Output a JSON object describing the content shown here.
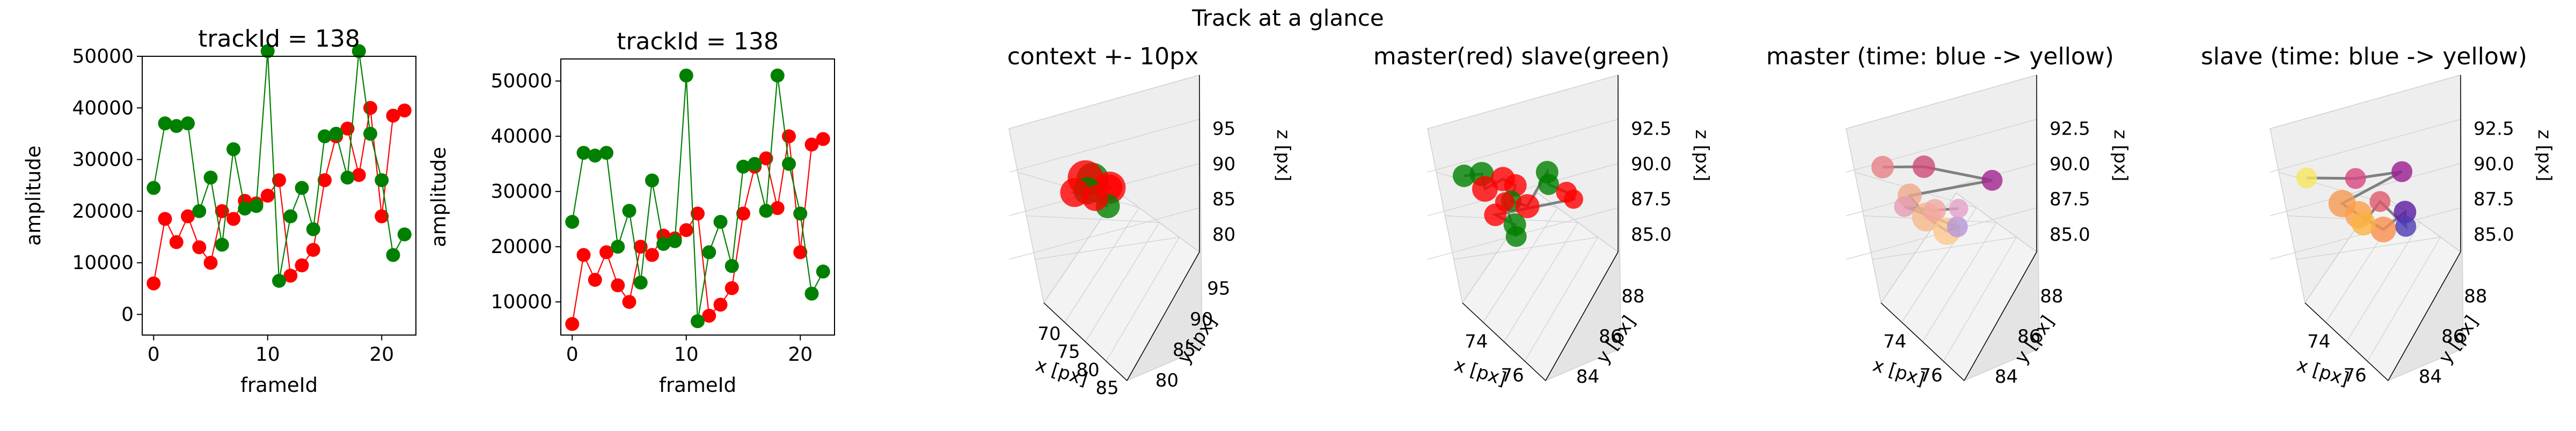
{
  "figure": {
    "suptitle": "Track at a glance"
  },
  "colors": {
    "master": "#ff0000",
    "slave": "#008000",
    "track_line": "#808080",
    "pane_face": "#eeeeee",
    "grid": "#d0d0d0"
  },
  "chart_data": [
    {
      "type": "line",
      "title": "trackId = 138",
      "xlabel": "frameId",
      "ylabel": "amplitude",
      "xlim": [
        -1,
        23
      ],
      "ylim": [
        -4000,
        50000
      ],
      "xticks": [
        "0",
        "10",
        "20"
      ],
      "yticks": [
        "0",
        "10000",
        "20000",
        "30000",
        "40000",
        "50000"
      ],
      "grid": false,
      "series": [
        {
          "color": "#ff0000",
          "x": [
            0,
            1,
            2,
            3,
            4,
            5,
            6,
            7,
            8,
            9,
            10,
            11,
            12,
            13,
            14,
            15,
            16,
            17,
            18,
            19,
            20,
            21,
            22
          ],
          "values": [
            6000,
            18500,
            14000,
            19000,
            13000,
            10000,
            20000,
            18500,
            22000,
            21500,
            23000,
            26000,
            7500,
            9500,
            12500,
            26000,
            34500,
            36000,
            27000,
            40000,
            19000,
            38500,
            39500
          ]
        },
        {
          "color": "#008000",
          "x": [
            0,
            1,
            2,
            3,
            4,
            5,
            6,
            7,
            8,
            9,
            10,
            11,
            12,
            13,
            14,
            15,
            16,
            17,
            18,
            19,
            20,
            21,
            22
          ],
          "values": [
            24500,
            37000,
            36500,
            37000,
            20000,
            26500,
            13500,
            32000,
            20500,
            21000,
            51000,
            6500,
            19000,
            24500,
            16500,
            34500,
            35000,
            26500,
            51000,
            35000,
            26000,
            11500,
            15500
          ]
        }
      ]
    },
    {
      "type": "line",
      "title": "trackId = 138",
      "xlabel": "frameId",
      "ylabel": "amplitude",
      "xlim": [
        -1,
        23
      ],
      "ylim": [
        4000,
        54000
      ],
      "xticks": [
        "0",
        "10",
        "20"
      ],
      "yticks": [
        "10000",
        "20000",
        "30000",
        "40000",
        "50000"
      ],
      "grid": false,
      "series": [
        {
          "color": "#ff0000",
          "x": [
            0,
            1,
            2,
            3,
            4,
            5,
            6,
            7,
            8,
            9,
            10,
            11,
            12,
            13,
            14,
            15,
            16,
            17,
            18,
            19,
            20,
            21,
            22
          ],
          "values": [
            6000,
            18500,
            14000,
            19000,
            13000,
            10000,
            20000,
            18500,
            22000,
            21500,
            23000,
            26000,
            7500,
            9500,
            12500,
            26000,
            34500,
            36000,
            27000,
            40000,
            19000,
            38500,
            39500
          ]
        },
        {
          "color": "#008000",
          "x": [
            0,
            1,
            2,
            3,
            4,
            5,
            6,
            7,
            8,
            9,
            10,
            11,
            12,
            13,
            14,
            15,
            16,
            17,
            18,
            19,
            20,
            21,
            22
          ],
          "values": [
            24500,
            37000,
            36500,
            37000,
            20000,
            26500,
            13500,
            32000,
            20500,
            21000,
            51000,
            6500,
            19000,
            24500,
            16500,
            34500,
            35000,
            26500,
            51000,
            35000,
            26000,
            11500,
            15500
          ]
        }
      ]
    },
    {
      "type": "scatter",
      "title": "context +- 10px",
      "xlabel": "x [px]",
      "ylabel": "y [px]",
      "zlabel": "z [px]",
      "xticks": [
        "70",
        "75",
        "80",
        "85"
      ],
      "yticks": [
        "80",
        "85",
        "90",
        "95"
      ],
      "zticks": [
        "80",
        "85",
        "90",
        "95"
      ],
      "points": [
        {
          "x": 76.0,
          "y": 86.5,
          "z": 89.5,
          "color": "#008000",
          "size": 20
        },
        {
          "x": 75.6,
          "y": 86.9,
          "z": 89.0,
          "color": "#ff0000",
          "size": 22
        },
        {
          "x": 76.4,
          "y": 87.2,
          "z": 88.8,
          "color": "#ff0000",
          "size": 20
        },
        {
          "x": 75.9,
          "y": 86.2,
          "z": 88.2,
          "color": "#008000",
          "size": 17
        },
        {
          "x": 76.2,
          "y": 87.8,
          "z": 88.4,
          "color": "#ff0000",
          "size": 16
        },
        {
          "x": 75.5,
          "y": 86.0,
          "z": 87.6,
          "color": "#ff0000",
          "size": 18
        },
        {
          "x": 76.6,
          "y": 86.4,
          "z": 87.3,
          "color": "#008000",
          "size": 15
        },
        {
          "x": 75.8,
          "y": 87.4,
          "z": 86.9,
          "color": "#ff0000",
          "size": 16
        }
      ]
    },
    {
      "type": "scatter",
      "title": "master(red) slave(green)",
      "xlabel": "x [px]",
      "ylabel": "y [px]",
      "zlabel": "z [px]",
      "xticks": [
        "74",
        "76"
      ],
      "yticks": [
        "84",
        "86",
        "88"
      ],
      "zticks": [
        "85.0",
        "87.5",
        "90.0",
        "92.5"
      ],
      "points": [
        {
          "x": 73.6,
          "y": 85.8,
          "z": 89.6,
          "color": "#008000",
          "size": 14
        },
        {
          "x": 74.2,
          "y": 86.2,
          "z": 89.8,
          "color": "#008000",
          "size": 15
        },
        {
          "x": 74.6,
          "y": 86.0,
          "z": 89.2,
          "color": "#ff0000",
          "size": 16
        },
        {
          "x": 75.0,
          "y": 86.6,
          "z": 89.7,
          "color": "#ff0000",
          "size": 15
        },
        {
          "x": 75.4,
          "y": 86.9,
          "z": 89.4,
          "color": "#ff0000",
          "size": 14
        },
        {
          "x": 75.8,
          "y": 86.3,
          "z": 88.9,
          "color": "#008000",
          "size": 13
        },
        {
          "x": 76.2,
          "y": 86.8,
          "z": 88.6,
          "color": "#ff0000",
          "size": 15
        },
        {
          "x": 76.6,
          "y": 87.5,
          "z": 90.4,
          "color": "#008000",
          "size": 14
        },
        {
          "x": 76.9,
          "y": 87.3,
          "z": 89.9,
          "color": "#008000",
          "size": 13
        },
        {
          "x": 77.4,
          "y": 87.8,
          "z": 89.5,
          "color": "#ff0000",
          "size": 13
        },
        {
          "x": 77.7,
          "y": 87.9,
          "z": 89.2,
          "color": "#ff0000",
          "size": 12
        },
        {
          "x": 75.2,
          "y": 86.0,
          "z": 88.0,
          "color": "#ff0000",
          "size": 14
        },
        {
          "x": 75.9,
          "y": 86.4,
          "z": 87.6,
          "color": "#008000",
          "size": 14
        },
        {
          "x": 76.3,
          "y": 86.1,
          "z": 87.2,
          "color": "#008000",
          "size": 13
        },
        {
          "x": 75.0,
          "y": 86.7,
          "z": 88.4,
          "color": "#ff0000",
          "size": 12
        }
      ]
    },
    {
      "type": "scatter",
      "title": "master (time: blue -> yellow)",
      "xlabel": "x [px]",
      "ylabel": "y [px]",
      "zlabel": "z [px]",
      "xticks": [
        "74",
        "76"
      ],
      "yticks": [
        "84",
        "86",
        "88"
      ],
      "zticks": [
        "85.0",
        "87.5",
        "90.0",
        "92.5"
      ],
      "points": [
        {
          "x": 74.4,
          "y": 85.6,
          "z": 89.4,
          "color": "#e67f83",
          "size": 14
        },
        {
          "x": 75.2,
          "y": 86.4,
          "z": 89.6,
          "color": "#cd4a76",
          "size": 14
        },
        {
          "x": 76.6,
          "y": 87.6,
          "z": 89.5,
          "color": "#a3238e",
          "size": 13
        },
        {
          "x": 75.0,
          "y": 86.0,
          "z": 88.6,
          "color": "#f0a98c",
          "size": 15
        },
        {
          "x": 75.4,
          "y": 86.2,
          "z": 88.0,
          "color": "#f6b989",
          "size": 18
        },
        {
          "x": 75.8,
          "y": 86.6,
          "z": 87.6,
          "color": "#fcc88c",
          "size": 17
        },
        {
          "x": 76.0,
          "y": 86.8,
          "z": 87.8,
          "color": "#b596d8",
          "size": 13
        },
        {
          "x": 74.9,
          "y": 85.9,
          "z": 88.2,
          "color": "#e59bb0",
          "size": 13
        },
        {
          "x": 75.6,
          "y": 86.3,
          "z": 88.3,
          "color": "#f2a7a0",
          "size": 14
        },
        {
          "x": 76.1,
          "y": 86.7,
          "z": 88.5,
          "color": "#e3a0c8",
          "size": 12
        }
      ]
    },
    {
      "type": "scatter",
      "title": "slave (time: blue -> yellow)",
      "xlabel": "x [px]",
      "ylabel": "y [px]",
      "zlabel": "z [px]",
      "xticks": [
        "74",
        "76"
      ],
      "yticks": [
        "84",
        "86",
        "88"
      ],
      "zticks": [
        "85.0",
        "87.5",
        "90.0",
        "92.5"
      ],
      "points": [
        {
          "x": 73.8,
          "y": 85.4,
          "z": 89.4,
          "color": "#f7e65e",
          "size": 13
        },
        {
          "x": 74.8,
          "y": 86.2,
          "z": 89.6,
          "color": "#d8457f",
          "size": 13
        },
        {
          "x": 75.8,
          "y": 86.9,
          "z": 90.2,
          "color": "#9b1c91",
          "size": 13
        },
        {
          "x": 74.6,
          "y": 85.9,
          "z": 88.4,
          "color": "#f49a52",
          "size": 17
        },
        {
          "x": 75.0,
          "y": 86.1,
          "z": 88.0,
          "color": "#fca04a",
          "size": 17
        },
        {
          "x": 75.6,
          "y": 86.4,
          "z": 87.5,
          "color": "#f98f4e",
          "size": 16
        },
        {
          "x": 76.0,
          "y": 86.8,
          "z": 88.4,
          "color": "#5b1aa0",
          "size": 14
        },
        {
          "x": 76.3,
          "y": 86.5,
          "z": 88.0,
          "color": "#4a3ab5",
          "size": 13
        },
        {
          "x": 75.3,
          "y": 86.6,
          "z": 88.6,
          "color": "#e0596b",
          "size": 13
        },
        {
          "x": 74.9,
          "y": 86.4,
          "z": 87.4,
          "color": "#fbb344",
          "size": 15
        }
      ]
    }
  ]
}
